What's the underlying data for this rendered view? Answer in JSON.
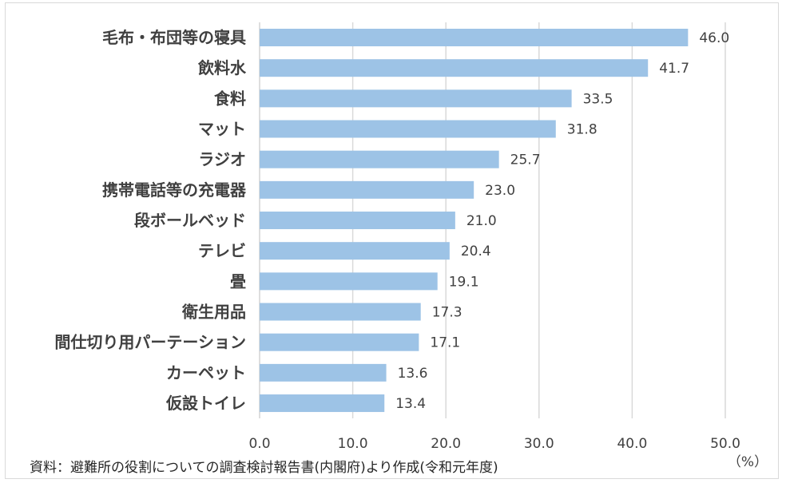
{
  "chart_data": {
    "type": "bar",
    "orientation": "horizontal",
    "categories": [
      "毛布・布団等の寝具",
      "飲料水",
      "食料",
      "マット",
      "ラジオ",
      "携帯電話等の充電器",
      "段ボールベッド",
      "テレビ",
      "畳",
      "衛生用品",
      "間仕切り用パーテーション",
      "カーペット",
      "仮設トイレ"
    ],
    "values": [
      46.0,
      41.7,
      33.5,
      31.8,
      25.7,
      23.0,
      21.0,
      20.4,
      19.1,
      17.3,
      17.1,
      13.6,
      13.4
    ],
    "value_labels": [
      "46.0",
      "41.7",
      "33.5",
      "31.8",
      "25.7",
      "23.0",
      "21.0",
      "20.4",
      "19.1",
      "17.3",
      "17.1",
      "13.6",
      "13.4"
    ],
    "xlim": [
      0,
      50
    ],
    "x_ticks": [
      0,
      10,
      20,
      30,
      40,
      50
    ],
    "x_tick_labels": [
      "0.0",
      "10.0",
      "20.0",
      "30.0",
      "40.0",
      "50.0"
    ],
    "unit_label": "（%）",
    "grid": true,
    "bar_color": "#9dc3e6",
    "grid_color": "#d9d9d9",
    "title": "",
    "xlabel": "",
    "ylabel": ""
  },
  "source_note": "資料：避難所の役割についての調査検討報告書(内閣府)より作成(令和元年度)"
}
